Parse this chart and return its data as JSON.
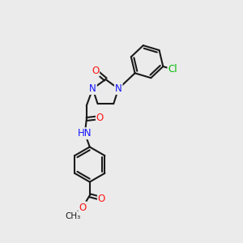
{
  "bg_color": "#ebebeb",
  "bond_color": "#1a1a1a",
  "bond_width": 1.5,
  "atom_colors": {
    "N": "#1414ff",
    "O": "#ff1414",
    "Cl": "#00bb00",
    "H": "#607060",
    "C": "#1a1a1a"
  },
  "figsize": [
    3.0,
    3.0
  ],
  "dpi": 100
}
